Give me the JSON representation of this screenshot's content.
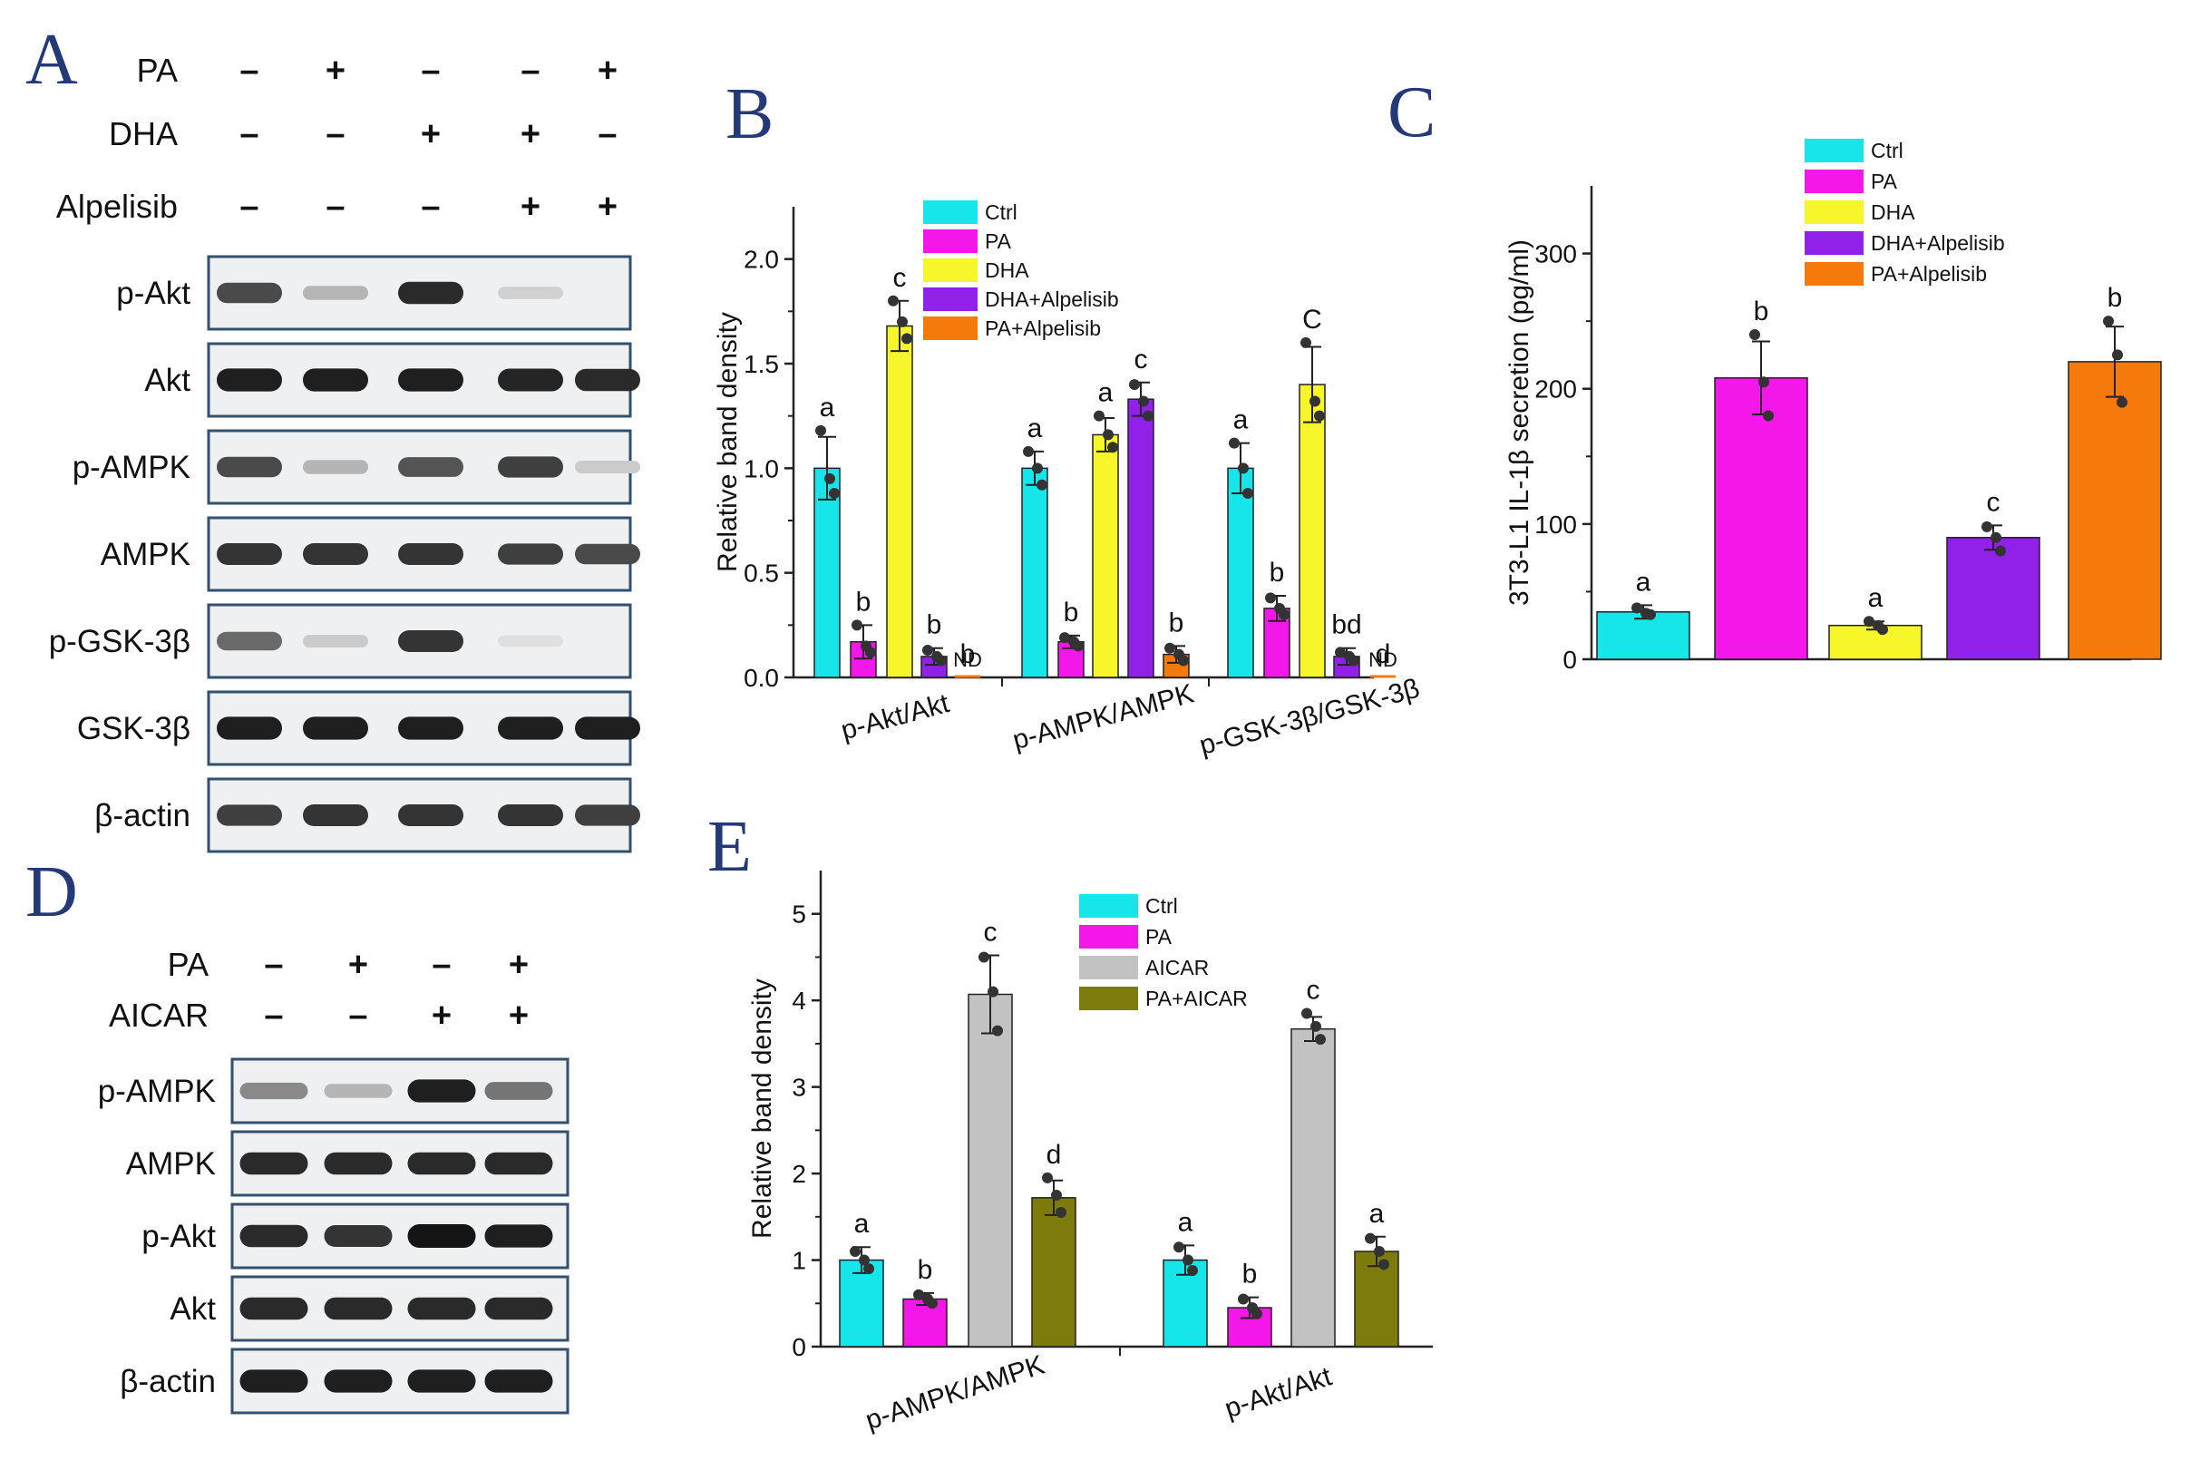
{
  "panels": {
    "A": "A",
    "B": "B",
    "C": "C",
    "D": "D",
    "E": "E"
  },
  "palette": {
    "Ctrl": "#16E6EA",
    "PA": "#F417E9",
    "DHA": "#F6F62B",
    "DHA+Alpelisib": "#9120E8",
    "PA+Alpelisib": "#F5790B",
    "AICAR": "#C2C2C2",
    "PA+AICAR": "#7E7B0D"
  },
  "blot_A": {
    "treatments": [
      {
        "label": "PA",
        "signs": [
          "–",
          "+",
          "–",
          "–",
          "+"
        ]
      },
      {
        "label": "DHA",
        "signs": [
          "–",
          "–",
          "+",
          "+",
          "–"
        ]
      },
      {
        "label": "Alpelisib",
        "signs": [
          "–",
          "–",
          "–",
          "+",
          "+"
        ]
      }
    ],
    "proteins": [
      {
        "label": "p-Akt",
        "intensity": [
          0.75,
          0.25,
          0.9,
          0.12,
          0.0
        ]
      },
      {
        "label": "Akt",
        "intensity": [
          0.95,
          0.95,
          0.95,
          0.92,
          0.9
        ]
      },
      {
        "label": "p-AMPK",
        "intensity": [
          0.75,
          0.25,
          0.7,
          0.8,
          0.15
        ]
      },
      {
        "label": "AMPK",
        "intensity": [
          0.85,
          0.85,
          0.85,
          0.8,
          0.75
        ]
      },
      {
        "label": "p-GSK-3β",
        "intensity": [
          0.6,
          0.15,
          0.85,
          0.05,
          0.0
        ]
      },
      {
        "label": "GSK-3β",
        "intensity": [
          0.95,
          0.95,
          0.95,
          0.95,
          0.95
        ]
      },
      {
        "label": "β-actin",
        "intensity": [
          0.8,
          0.85,
          0.85,
          0.85,
          0.8
        ]
      }
    ]
  },
  "blot_D": {
    "treatments": [
      {
        "label": "PA",
        "signs": [
          "–",
          "+",
          "–",
          "+"
        ]
      },
      {
        "label": "AICAR",
        "signs": [
          "–",
          "–",
          "+",
          "+"
        ]
      }
    ],
    "proteins": [
      {
        "label": "p-AMPK",
        "intensity": [
          0.45,
          0.25,
          0.95,
          0.55
        ]
      },
      {
        "label": "AMPK",
        "intensity": [
          0.9,
          0.9,
          0.9,
          0.9
        ]
      },
      {
        "label": "p-Akt",
        "intensity": [
          0.9,
          0.85,
          1.0,
          0.95
        ]
      },
      {
        "label": "Akt",
        "intensity": [
          0.9,
          0.9,
          0.9,
          0.9
        ]
      },
      {
        "label": "β-actin",
        "intensity": [
          0.95,
          0.95,
          0.95,
          0.95
        ]
      }
    ]
  },
  "chart_data": [
    {
      "id": "B",
      "type": "bar",
      "ylabel": "Relative band density",
      "xlabel": "",
      "ylim": [
        0,
        2.25
      ],
      "yticks": [
        0.0,
        0.5,
        1.0,
        1.5,
        2.0
      ],
      "ytick_labels": [
        "0.0",
        "0.5",
        "1.0",
        "1.5",
        "2.0"
      ],
      "legend_position": "top-center",
      "categories": [
        "p-Akt/Akt",
        "p-AMPK/AMPK",
        "p-GSK-3β/GSK-3β"
      ],
      "series": [
        {
          "name": "Ctrl",
          "values": [
            1.0,
            1.0,
            1.0
          ],
          "errors": [
            0.15,
            0.08,
            0.12
          ],
          "letters": [
            "a",
            "a",
            "a"
          ],
          "points": [
            [
              1.18,
              0.95,
              0.88
            ],
            [
              1.08,
              1.0,
              0.92
            ],
            [
              1.12,
              1.0,
              0.88
            ]
          ]
        },
        {
          "name": "PA",
          "values": [
            0.17,
            0.17,
            0.33
          ],
          "errors": [
            0.08,
            0.03,
            0.06
          ],
          "letters": [
            "b",
            "b",
            "b"
          ],
          "points": [
            [
              0.25,
              0.15,
              0.12
            ],
            [
              0.19,
              0.17,
              0.15
            ],
            [
              0.38,
              0.33,
              0.3
            ]
          ]
        },
        {
          "name": "DHA",
          "values": [
            1.68,
            1.16,
            1.4
          ],
          "errors": [
            0.12,
            0.08,
            0.18
          ],
          "letters": [
            "c",
            "a",
            "C"
          ],
          "points": [
            [
              1.8,
              1.7,
              1.62
            ],
            [
              1.25,
              1.16,
              1.1
            ],
            [
              1.6,
              1.32,
              1.25
            ]
          ]
        },
        {
          "name": "DHA+Alpelisib",
          "values": [
            0.1,
            1.33,
            0.1
          ],
          "errors": [
            0.04,
            0.08,
            0.04
          ],
          "letters": [
            "b",
            "c",
            "bd"
          ],
          "points": [
            [
              0.13,
              0.1,
              0.08
            ],
            [
              1.4,
              1.32,
              1.25
            ],
            [
              0.12,
              0.1,
              0.08
            ]
          ]
        },
        {
          "name": "PA+Alpelisib",
          "values": [
            0.0,
            0.11,
            0.0
          ],
          "errors": [
            0.0,
            0.04,
            0.0
          ],
          "letters": [
            "b",
            "b",
            "d"
          ],
          "notes": [
            "ND",
            "",
            "ND"
          ],
          "points": [
            [],
            [
              0.14,
              0.11,
              0.08
            ],
            []
          ]
        }
      ]
    },
    {
      "id": "C",
      "type": "bar",
      "ylabel": "3T3-L1  IL-1β secretion (pg/ml)",
      "xlabel": "",
      "ylim": [
        0,
        350
      ],
      "yticks": [
        0,
        100,
        200,
        300
      ],
      "ytick_labels": [
        "0",
        "100",
        "200",
        "300"
      ],
      "legend_position": "top-left",
      "categories": [
        "Ctrl",
        "PA",
        "DHA",
        "DHA+Alpelisib",
        "PA+Alpelisib"
      ],
      "values": [
        35,
        208,
        25,
        90,
        220
      ],
      "errors": [
        5,
        27,
        3,
        9,
        26
      ],
      "letters": [
        "a",
        "b",
        "a",
        "c",
        "b"
      ],
      "points": [
        [
          38,
          34,
          33
        ],
        [
          240,
          205,
          180
        ],
        [
          28,
          25,
          22
        ],
        [
          98,
          90,
          80
        ],
        [
          250,
          225,
          190
        ]
      ]
    },
    {
      "id": "E",
      "type": "bar",
      "ylabel": "Relative band density",
      "xlabel": "",
      "ylim": [
        0,
        5.5
      ],
      "yticks": [
        0,
        1,
        2,
        3,
        4,
        5
      ],
      "ytick_labels": [
        "0",
        "1",
        "2",
        "3",
        "4",
        "5"
      ],
      "legend_position": "top-center",
      "categories": [
        "p-AMPK/AMPK",
        "p-Akt/Akt"
      ],
      "series": [
        {
          "name": "Ctrl",
          "values": [
            1.0,
            1.0
          ],
          "errors": [
            0.15,
            0.17
          ],
          "letters": [
            "a",
            "a"
          ],
          "points": [
            [
              1.1,
              1.0,
              0.9
            ],
            [
              1.15,
              1.0,
              0.88
            ]
          ]
        },
        {
          "name": "PA",
          "values": [
            0.55,
            0.45
          ],
          "errors": [
            0.07,
            0.12
          ],
          "letters": [
            "b",
            "b"
          ],
          "points": [
            [
              0.6,
              0.55,
              0.5
            ],
            [
              0.55,
              0.45,
              0.38
            ]
          ]
        },
        {
          "name": "AICAR",
          "values": [
            4.07,
            3.67
          ],
          "errors": [
            0.45,
            0.14
          ],
          "letters": [
            "c",
            "c"
          ],
          "points": [
            [
              4.5,
              4.1,
              3.65
            ],
            [
              3.85,
              3.7,
              3.55
            ]
          ]
        },
        {
          "name": "PA+AICAR",
          "values": [
            1.72,
            1.1
          ],
          "errors": [
            0.2,
            0.17
          ],
          "letters": [
            "d",
            "a"
          ],
          "points": [
            [
              1.95,
              1.75,
              1.55
            ],
            [
              1.25,
              1.1,
              0.95
            ]
          ]
        }
      ]
    }
  ]
}
